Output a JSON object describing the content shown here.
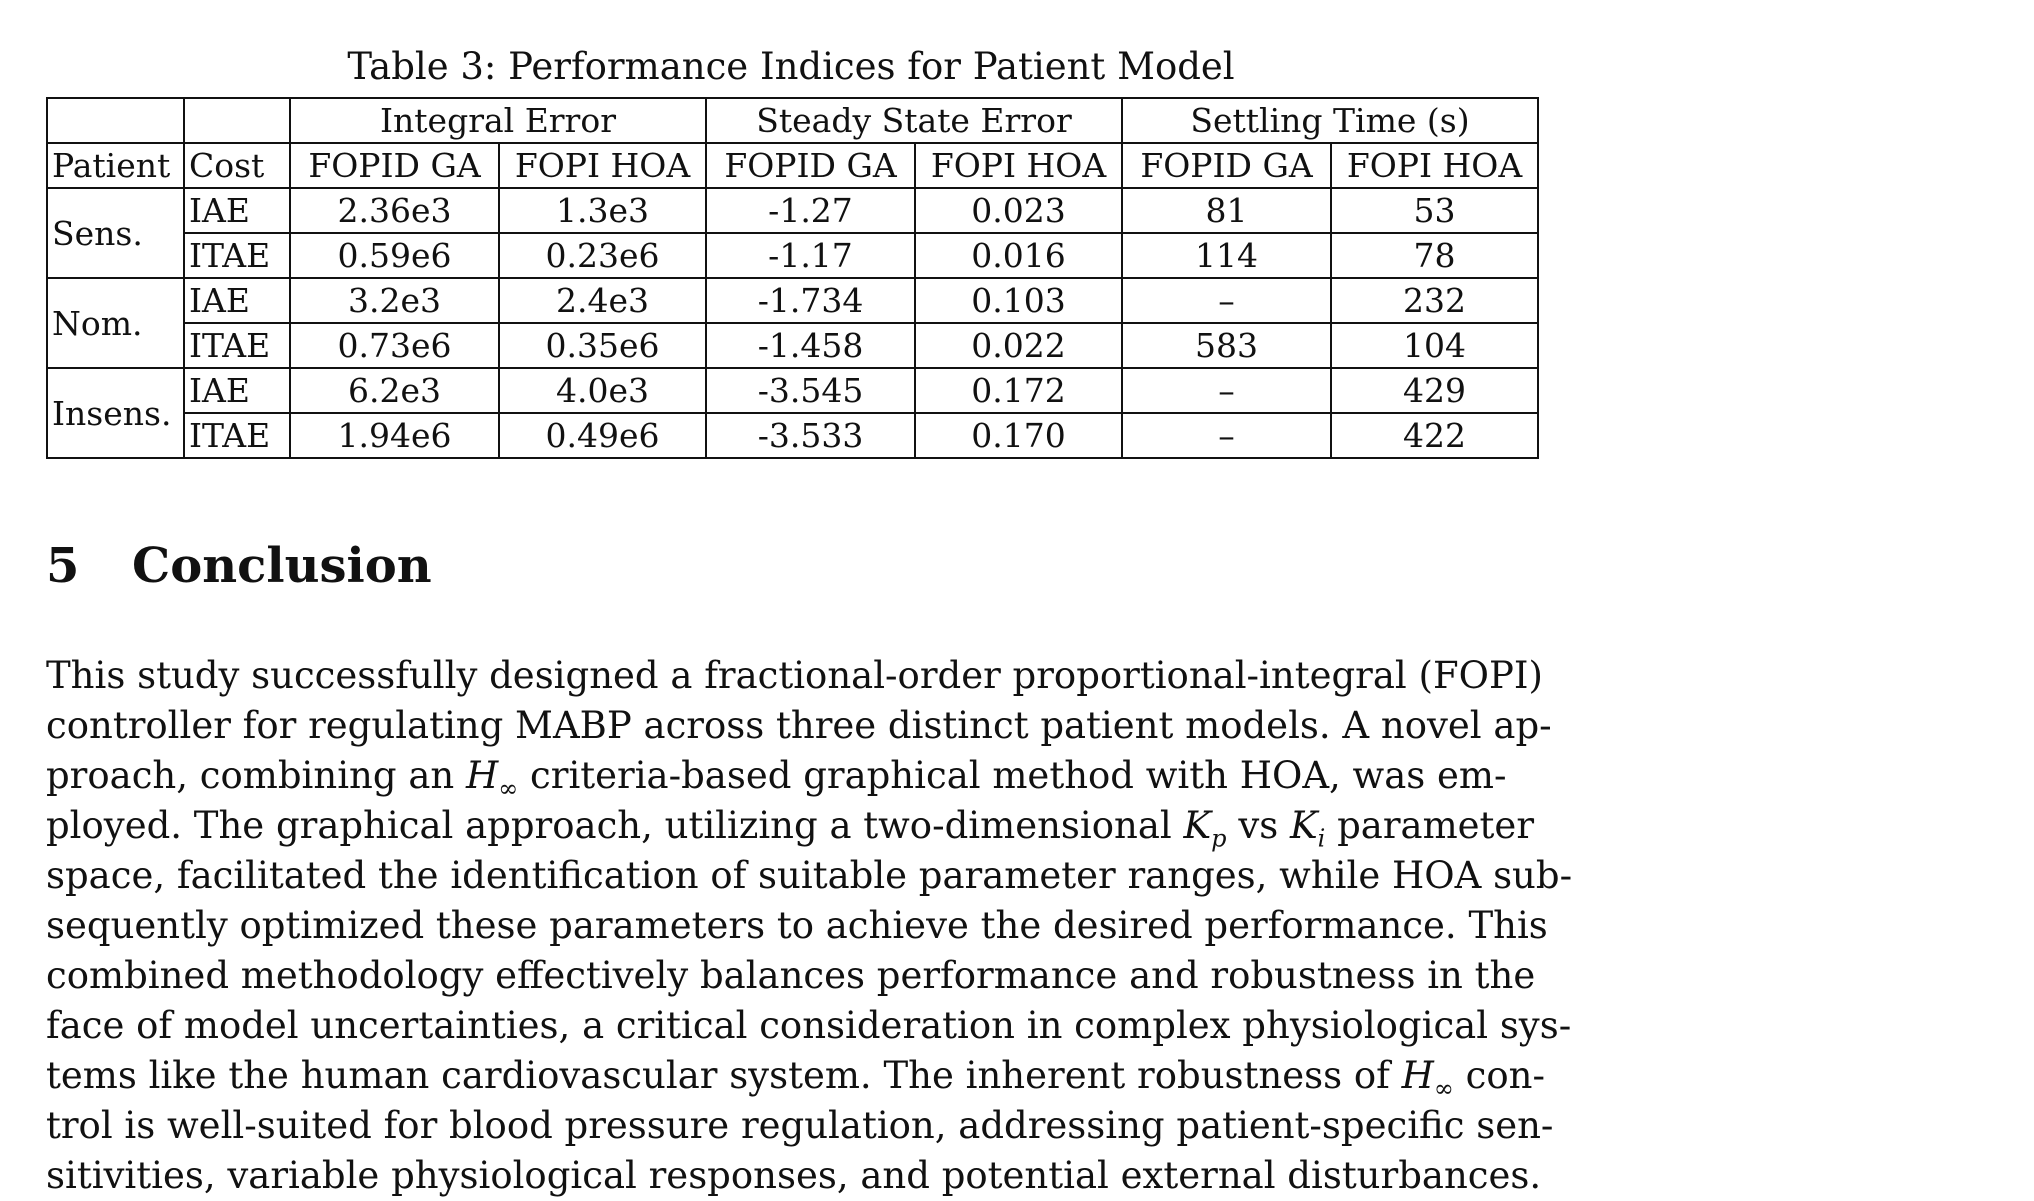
{
  "table": {
    "caption": "Table 3: Performance Indices for Patient Model",
    "group_headers": [
      "Integral Error",
      "Steady State Error",
      "Settling Time (s)"
    ],
    "column_headers": [
      "Patient",
      "Cost",
      "FOPID GA",
      "FOPI HOA",
      "FOPID GA",
      "FOPI HOA",
      "FOPID GA",
      "FOPI HOA"
    ],
    "rows": [
      {
        "patient": "Sens.",
        "cost": "IAE",
        "ie_ga": "2.36e3",
        "ie_hoa": "1.3e3",
        "sse_ga": "-1.27",
        "sse_hoa": "0.023",
        "st_ga": "81",
        "st_hoa": "53"
      },
      {
        "patient": "",
        "cost": "ITAE",
        "ie_ga": "0.59e6",
        "ie_hoa": "0.23e6",
        "sse_ga": "-1.17",
        "sse_hoa": "0.016",
        "st_ga": "114",
        "st_hoa": "78"
      },
      {
        "patient": "Nom.",
        "cost": "IAE",
        "ie_ga": "3.2e3",
        "ie_hoa": "2.4e3",
        "sse_ga": "-1.734",
        "sse_hoa": "0.103",
        "st_ga": "–",
        "st_hoa": "232"
      },
      {
        "patient": "",
        "cost": "ITAE",
        "ie_ga": "0.73e6",
        "ie_hoa": "0.35e6",
        "sse_ga": "-1.458",
        "sse_hoa": "0.022",
        "st_ga": "583",
        "st_hoa": "104"
      },
      {
        "patient": "Insens.",
        "cost": "IAE",
        "ie_ga": "6.2e3",
        "ie_hoa": "4.0e3",
        "sse_ga": "-3.545",
        "sse_hoa": "0.172",
        "st_ga": "–",
        "st_hoa": "429"
      },
      {
        "patient": "",
        "cost": "ITAE",
        "ie_ga": "1.94e6",
        "ie_hoa": "0.49e6",
        "sse_ga": "-3.533",
        "sse_hoa": "0.170",
        "st_ga": "–",
        "st_hoa": "422"
      }
    ]
  },
  "section": {
    "number": "5",
    "title": "Conclusion"
  },
  "paragraph": {
    "l1": "This study successfully designed a fractional-order proportional-integral (FOPI)",
    "l2": "controller for regulating MABP across three distinct patient models. A novel ap-",
    "l3a": "proach, combining an",
    "h": "H",
    "inf": "∞",
    "l3b": "criteria-based graphical method with HOA, was em-",
    "l4a": "ployed. The graphical approach, utilizing a two-dimensional",
    "k": "K",
    "p": "p",
    "vs": "vs",
    "i": "i",
    "l4b": "parameter",
    "l5": "space, facilitated the identification of suitable parameter ranges, while HOA sub-",
    "l6": "sequently optimized these parameters to achieve the desired performance. This",
    "l7": "combined methodology effectively balances performance and robustness in the",
    "l8": "face of model uncertainties, a critical consideration in complex physiological sys-",
    "l9a": "tems like the human cardiovascular system. The inherent robustness of",
    "l9b": "con-",
    "l10": "trol is well-suited for blood pressure regulation, addressing patient-specific sen-",
    "l11": "sitivities, variable physiological responses, and potential external disturbances."
  }
}
